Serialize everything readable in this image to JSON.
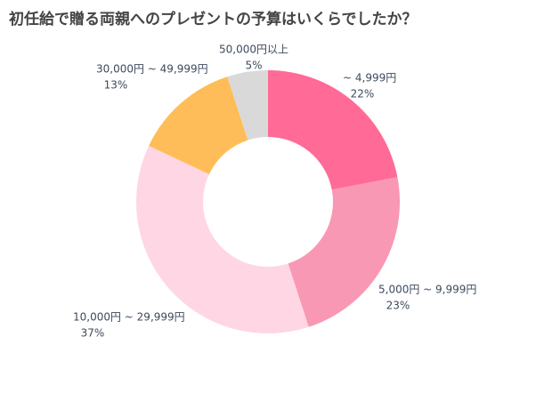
{
  "chart_data": {
    "type": "donut",
    "title": "初任給で贈る両親へのプレゼントの予算はいくらでしたか？",
    "categories": [
      "~ 4,999円",
      "5,000円 ~ 9,999円",
      "10,000円 ~ 29,999円",
      "30,000円 ~ 49,999円",
      "50,000円以上"
    ],
    "values": [
      22,
      23,
      37,
      13,
      5
    ],
    "value_labels": [
      "22%",
      "23%",
      "37%",
      "13%",
      "5%"
    ],
    "colors": [
      "#ff6b96",
      "#f898b4",
      "#ffd6e3",
      "#ffbd59",
      "#d9d9d9"
    ]
  }
}
